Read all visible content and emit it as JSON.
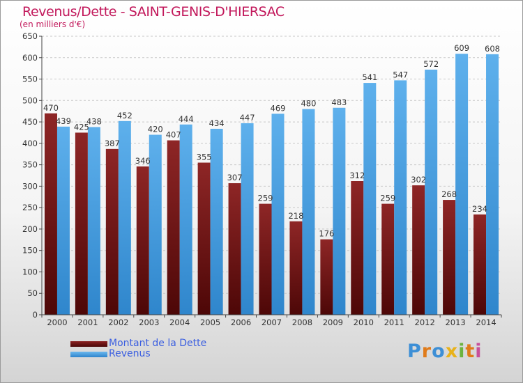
{
  "title": "Revenus/Dette - SAINT-GENIS-D'HIERSAC",
  "subtitle": "(en milliers d'€)",
  "legend": {
    "debt": "Montant de la Dette",
    "revenue": "Revenus"
  },
  "logo": {
    "text": "Proxiti"
  },
  "colors": {
    "debt": "#7a1818",
    "revenue": "#4ea6e6",
    "title": "#c2185b",
    "legend_text": "#3a5ee0"
  },
  "chart_data": {
    "type": "bar",
    "categories": [
      "2000",
      "2001",
      "2002",
      "2003",
      "2004",
      "2005",
      "2006",
      "2007",
      "2008",
      "2009",
      "2010",
      "2011",
      "2012",
      "2013",
      "2014"
    ],
    "series": [
      {
        "name": "Montant de la Dette",
        "values": [
          470,
          425,
          387,
          346,
          407,
          355,
          307,
          259,
          218,
          176,
          312,
          259,
          302,
          268,
          234
        ]
      },
      {
        "name": "Revenus",
        "values": [
          439,
          438,
          452,
          420,
          444,
          434,
          447,
          469,
          480,
          483,
          541,
          547,
          572,
          609,
          608
        ]
      }
    ],
    "ylim": [
      0,
      650
    ],
    "yticks": [
      0,
      50,
      100,
      150,
      200,
      250,
      300,
      350,
      400,
      450,
      500,
      550,
      600,
      650
    ],
    "grid": true,
    "legend_position": "bottom-left"
  }
}
